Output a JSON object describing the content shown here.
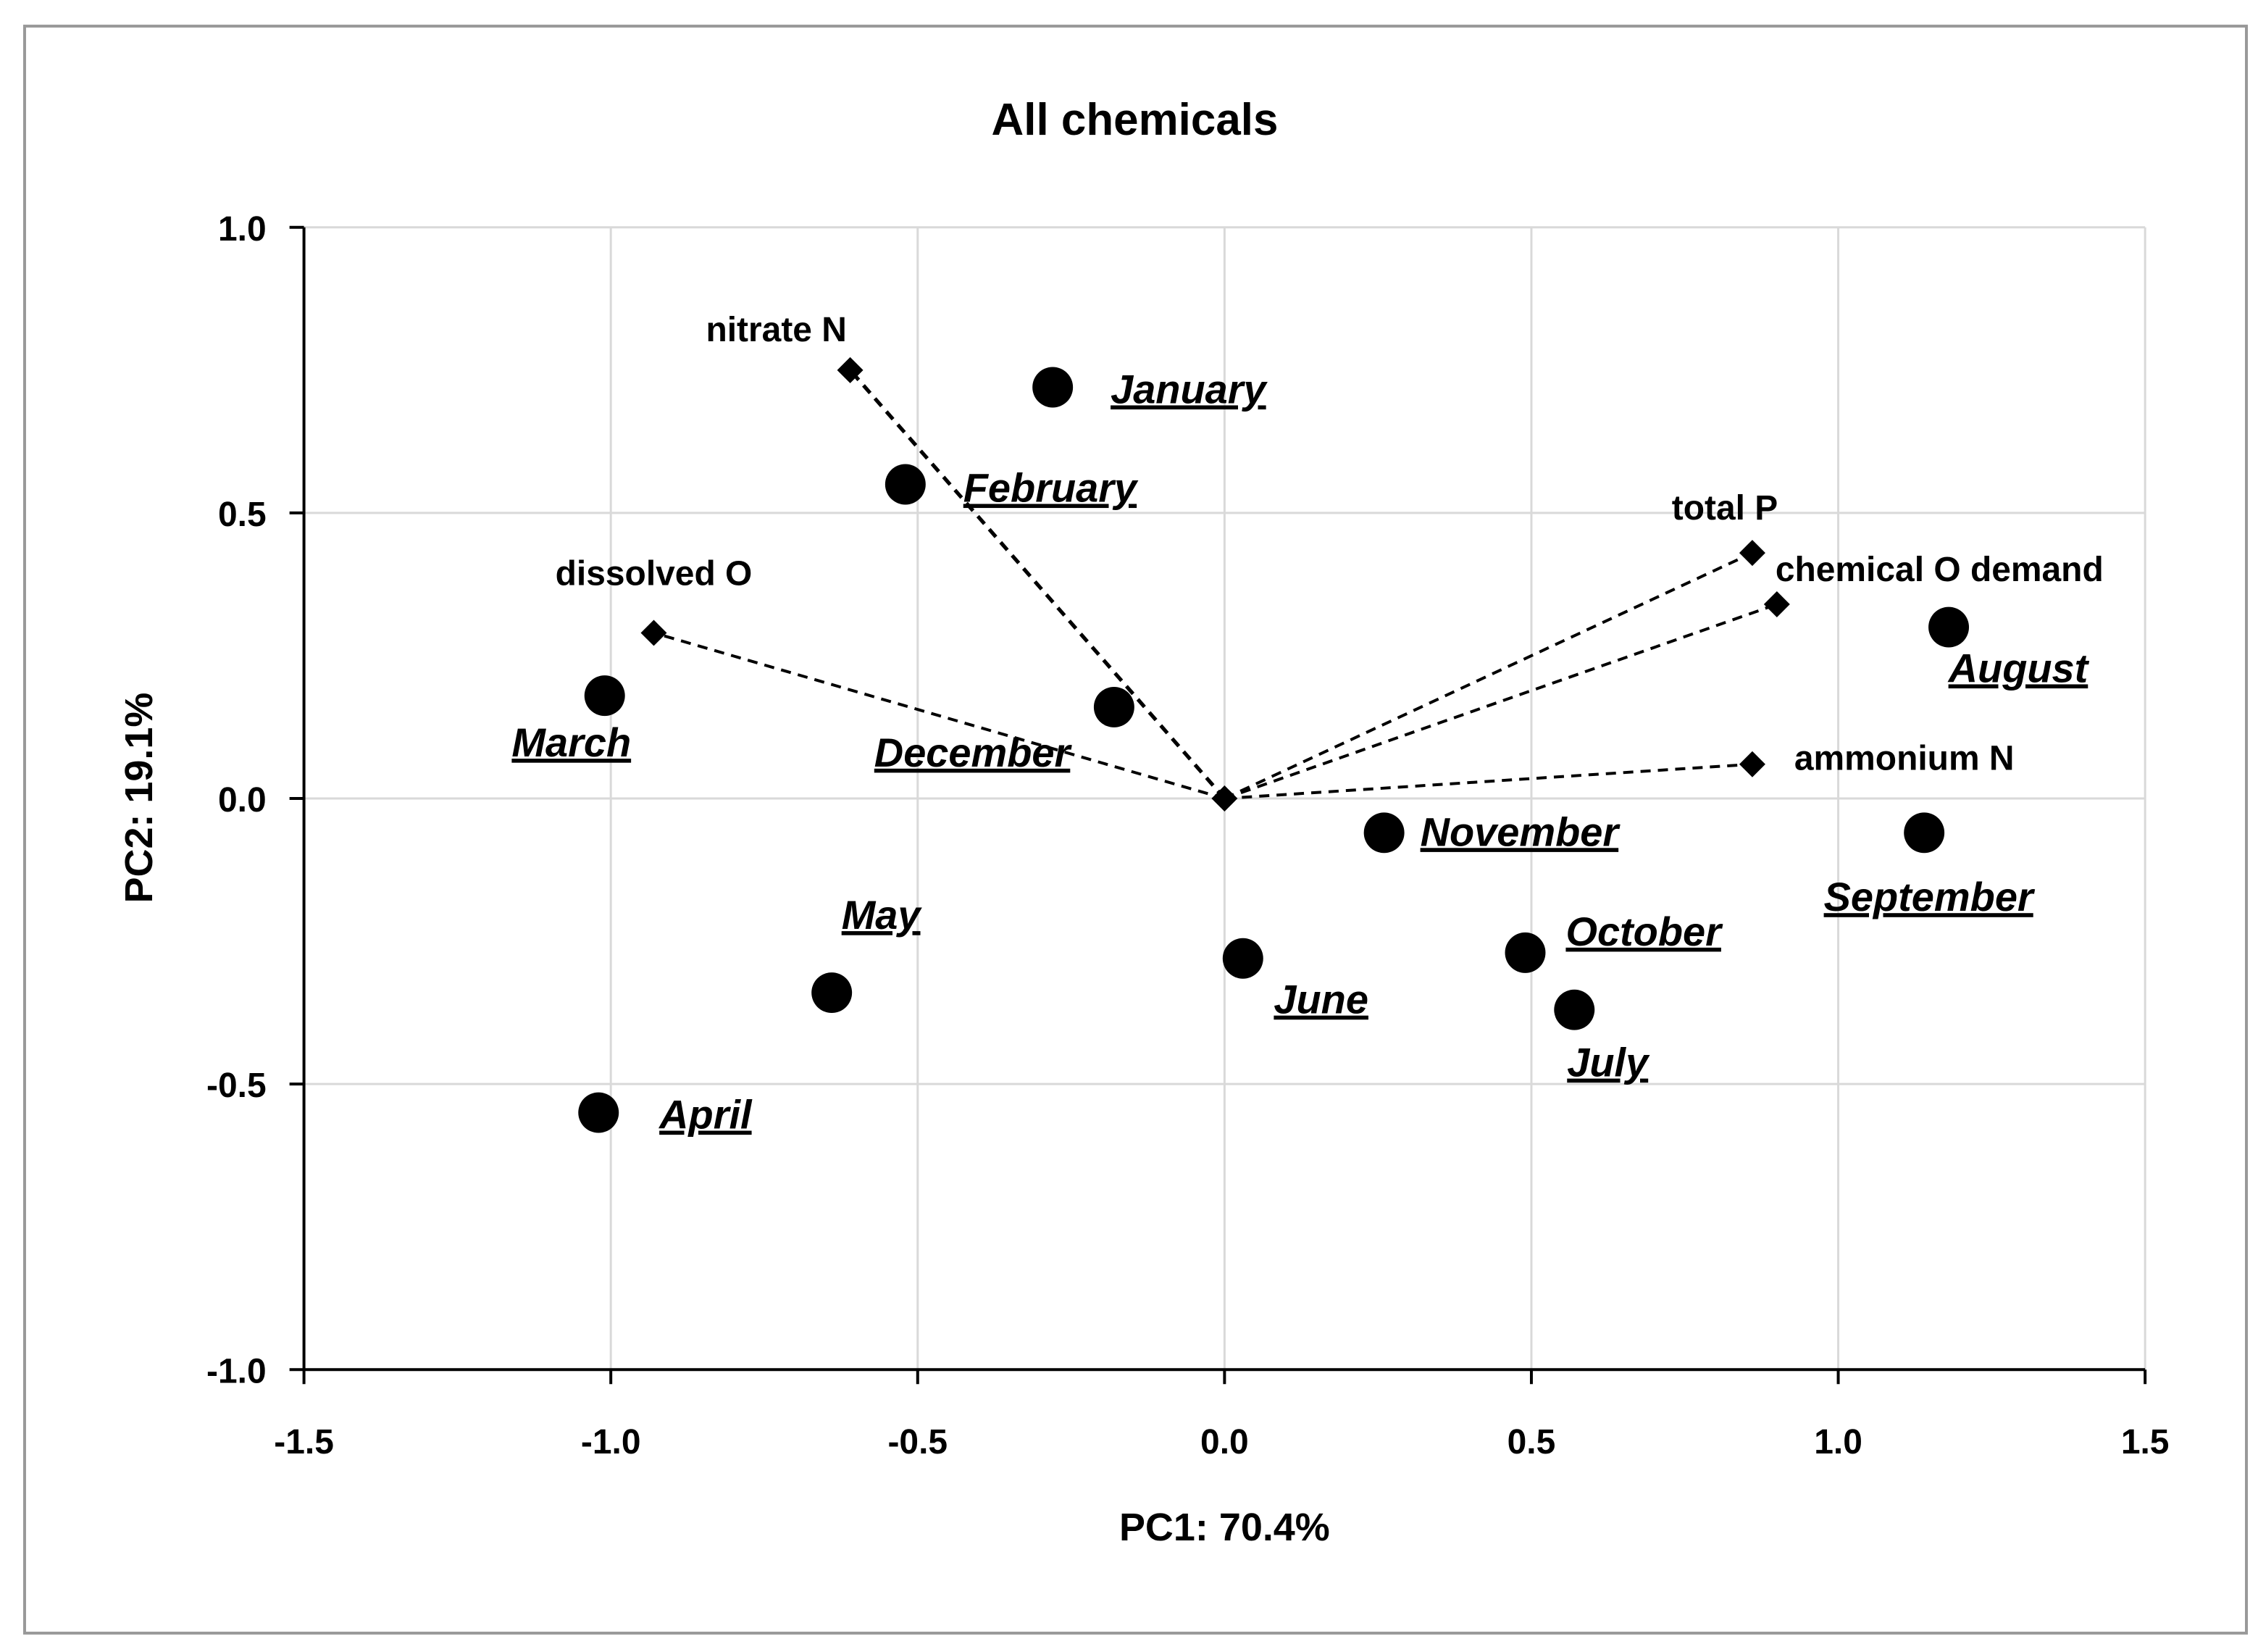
{
  "chart_data": {
    "type": "scatter",
    "title": "All chemicals",
    "xlabel": "PC1: 70.4%",
    "ylabel": "PC2: 19.1%",
    "xlim": [
      -1.5,
      1.5
    ],
    "ylim": [
      -1.0,
      1.0
    ],
    "xticks": [
      "-1.5",
      "-1.0",
      "-0.5",
      "0.0",
      "0.5",
      "1.0",
      "1.5"
    ],
    "yticks": [
      "-1.0",
      "-0.5",
      "0.0",
      "0.5",
      "1.0"
    ],
    "grid": true,
    "legend": "none",
    "series": [
      {
        "kind": "scores",
        "marker": "circle",
        "points": [
          {
            "label": "January",
            "x": -0.28,
            "y": 0.72
          },
          {
            "label": "February",
            "x": -0.52,
            "y": 0.55
          },
          {
            "label": "March",
            "x": -1.01,
            "y": 0.18
          },
          {
            "label": "April",
            "x": -1.02,
            "y": -0.55
          },
          {
            "label": "May",
            "x": -0.64,
            "y": -0.34
          },
          {
            "label": "June",
            "x": 0.03,
            "y": -0.28
          },
          {
            "label": "July",
            "x": 0.57,
            "y": -0.37
          },
          {
            "label": "August",
            "x": 1.18,
            "y": 0.3
          },
          {
            "label": "September",
            "x": 1.14,
            "y": -0.06
          },
          {
            "label": "October",
            "x": 0.49,
            "y": -0.27
          },
          {
            "label": "November",
            "x": 0.26,
            "y": -0.06
          },
          {
            "label": "December",
            "x": -0.18,
            "y": 0.16
          }
        ]
      },
      {
        "kind": "loadings",
        "marker": "diamond",
        "line": "dashed from origin",
        "points": [
          {
            "label": "nitrate N",
            "x": -0.61,
            "y": 0.75
          },
          {
            "label": "dissolved O",
            "x": -0.93,
            "y": 0.29
          },
          {
            "label": "total P",
            "x": 0.86,
            "y": 0.43
          },
          {
            "label": "chemical O demand",
            "x": 0.9,
            "y": 0.34
          },
          {
            "label": "ammonium N",
            "x": 0.86,
            "y": 0.06
          }
        ]
      }
    ],
    "colors": {
      "marker": "#000000",
      "grid": "#d9d9d9",
      "axis": "#000000"
    }
  }
}
